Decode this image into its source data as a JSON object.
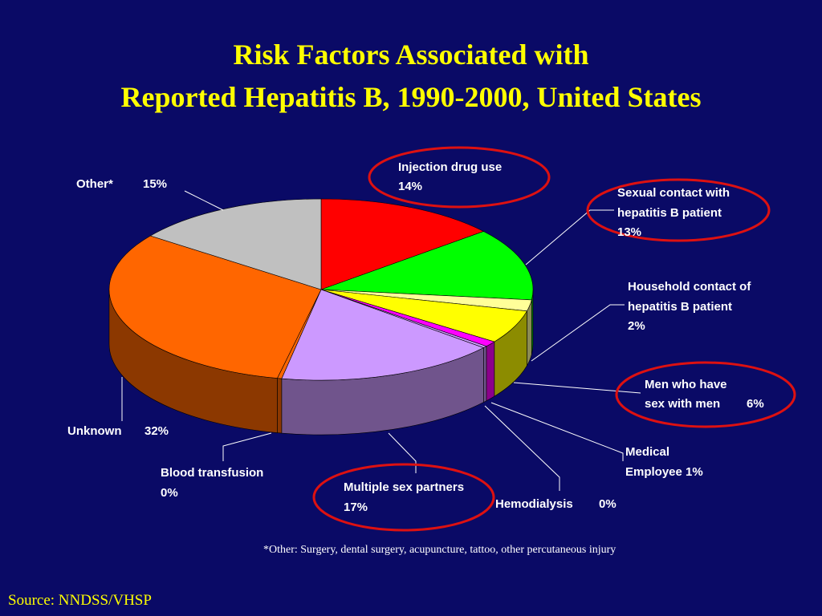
{
  "title_line1": "Risk Factors Associated with",
  "title_line2": "Reported Hepatitis B, 1990-2000, United States",
  "footnote": "*Other: Surgery, dental surgery, acupuncture, tattoo, other percutaneous injury",
  "source": "Source:  NNDSS/VHSP",
  "chart_data": {
    "type": "pie",
    "style": "3d-exploded-none",
    "slices": [
      {
        "label": "Injection drug use",
        "value": 14,
        "value_label": "14%",
        "color": "#ff0000",
        "circled": true
      },
      {
        "label": "Sexual contact with hepatitis B patient",
        "value": 13,
        "value_label": "13%",
        "color": "#00ff00",
        "circled": true
      },
      {
        "label": "Household contact of hepatitis B patient",
        "value": 2,
        "value_label": "2%",
        "color": "#ffff99",
        "circled": false
      },
      {
        "label": "Men who have sex with men",
        "value": 6,
        "value_label": "6%",
        "color": "#ffff00",
        "circled": true
      },
      {
        "label": "Medical Employee",
        "value": 1,
        "value_label": "1%",
        "color": "#ff00ff",
        "circled": false
      },
      {
        "label": "Hemodialysis",
        "value": 0,
        "value_label": "0%",
        "color": "#cc99ff",
        "circled": false
      },
      {
        "label": "Multiple sex partners",
        "value": 17,
        "value_label": "17%",
        "color": "#cc99ff",
        "circled": true
      },
      {
        "label": "Blood transfusion",
        "value": 0,
        "value_label": "0%",
        "color": "#ff6600",
        "circled": false
      },
      {
        "label": "Unknown",
        "value": 32,
        "value_label": "32%",
        "color": "#ff6600",
        "circled": false
      },
      {
        "label": "Other*",
        "value": 15,
        "value_label": "15%",
        "color": "#c0c0c0",
        "circled": false
      }
    ],
    "label_text": {
      "idu_1": "Injection drug use",
      "idu_2": "14%",
      "sex_1": "Sexual contact with",
      "sex_2": "hepatitis B patient",
      "sex_3": "13%",
      "house_1": "Household contact of",
      "house_2": "hepatitis B patient",
      "house_3": "2%",
      "msm_1": "Men who have",
      "msm_2": "sex with men",
      "msm_3": "6%",
      "med_1": "Medical",
      "med_2": "Employee 1%",
      "hemo_1": "Hemodialysis",
      "hemo_2": "0%",
      "multi_1": "Multiple sex partners",
      "multi_2": "17%",
      "blood_1": "Blood transfusion",
      "blood_2": "0%",
      "unk_1": "Unknown",
      "unk_2": "32%",
      "other_1": "Other*",
      "other_2": "15%"
    },
    "highlight_color": "#dd1111"
  }
}
